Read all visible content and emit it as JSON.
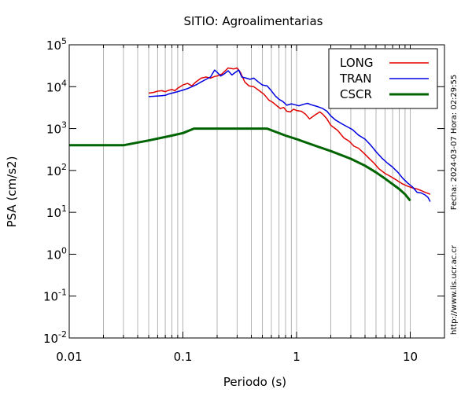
{
  "chart_data": {
    "type": "line",
    "title": "SITIO: Agroalimentarias",
    "xlabel": "Periodo (s)",
    "ylabel": "PSA (cm/s2)",
    "xscale": "log",
    "yscale": "log",
    "xlim": [
      0.01,
      20
    ],
    "ylim": [
      0.01,
      100000
    ],
    "grid": "x-minor-vertical",
    "legend_position": "top-right",
    "x_ticks": [
      {
        "value": 0.01,
        "label": "0.01"
      },
      {
        "value": 0.1,
        "label": "0.1"
      },
      {
        "value": 1,
        "label": "1"
      },
      {
        "value": 10,
        "label": "10"
      }
    ],
    "y_ticks": [
      {
        "value": 0.01,
        "base": "10",
        "exp": "-2"
      },
      {
        "value": 0.1,
        "base": "10",
        "exp": "-1"
      },
      {
        "value": 1,
        "base": "10",
        "exp": "0"
      },
      {
        "value": 10,
        "base": "10",
        "exp": "1"
      },
      {
        "value": 100,
        "base": "10",
        "exp": "2"
      },
      {
        "value": 1000,
        "base": "10",
        "exp": "3"
      },
      {
        "value": 10000,
        "base": "10",
        "exp": "4"
      },
      {
        "value": 100000,
        "base": "10",
        "exp": "5"
      }
    ],
    "series": [
      {
        "name": "LONG",
        "color": "#e00000",
        "width": 1.5,
        "points": [
          [
            0.05,
            7000
          ],
          [
            0.055,
            7300
          ],
          [
            0.06,
            7800
          ],
          [
            0.065,
            8000
          ],
          [
            0.07,
            7600
          ],
          [
            0.075,
            8200
          ],
          [
            0.08,
            8600
          ],
          [
            0.085,
            8000
          ],
          [
            0.09,
            9200
          ],
          [
            0.1,
            11000
          ],
          [
            0.11,
            12000
          ],
          [
            0.12,
            10500
          ],
          [
            0.13,
            13000
          ],
          [
            0.145,
            16000
          ],
          [
            0.16,
            17000
          ],
          [
            0.175,
            16000
          ],
          [
            0.19,
            17500
          ],
          [
            0.2,
            18000
          ],
          [
            0.22,
            20000
          ],
          [
            0.25,
            28000
          ],
          [
            0.28,
            26500
          ],
          [
            0.3,
            28000
          ],
          [
            0.32,
            22000
          ],
          [
            0.35,
            13000
          ],
          [
            0.38,
            10500
          ],
          [
            0.42,
            10000
          ],
          [
            0.47,
            8000
          ],
          [
            0.52,
            6500
          ],
          [
            0.57,
            4800
          ],
          [
            0.62,
            4200
          ],
          [
            0.67,
            3500
          ],
          [
            0.72,
            3000
          ],
          [
            0.77,
            3200
          ],
          [
            0.82,
            2600
          ],
          [
            0.88,
            2500
          ],
          [
            0.94,
            2900
          ],
          [
            1.0,
            2700
          ],
          [
            1.1,
            2600
          ],
          [
            1.2,
            2200
          ],
          [
            1.3,
            1700
          ],
          [
            1.45,
            2100
          ],
          [
            1.6,
            2500
          ],
          [
            1.7,
            2200
          ],
          [
            1.85,
            1700
          ],
          [
            2.0,
            1200
          ],
          [
            2.3,
            900
          ],
          [
            2.6,
            600
          ],
          [
            2.9,
            500
          ],
          [
            3.2,
            380
          ],
          [
            3.5,
            340
          ],
          [
            3.9,
            260
          ],
          [
            4.3,
            200
          ],
          [
            4.8,
            150
          ],
          [
            5.3,
            110
          ],
          [
            6.0,
            85
          ],
          [
            6.7,
            72
          ],
          [
            7.5,
            60
          ],
          [
            8.5,
            48
          ],
          [
            9.5,
            42
          ],
          [
            10.5,
            38
          ],
          [
            11.5,
            36
          ],
          [
            12.5,
            33
          ],
          [
            13.5,
            30
          ],
          [
            14.5,
            28
          ],
          [
            15,
            27
          ]
        ]
      },
      {
        "name": "TRAN",
        "color": "#0000e0",
        "width": 1.5,
        "points": [
          [
            0.05,
            5800
          ],
          [
            0.055,
            5900
          ],
          [
            0.06,
            6000
          ],
          [
            0.065,
            6100
          ],
          [
            0.07,
            6200
          ],
          [
            0.075,
            6700
          ],
          [
            0.08,
            7000
          ],
          [
            0.09,
            7600
          ],
          [
            0.1,
            8300
          ],
          [
            0.11,
            9000
          ],
          [
            0.12,
            10000
          ],
          [
            0.13,
            11000
          ],
          [
            0.145,
            13000
          ],
          [
            0.16,
            15000
          ],
          [
            0.175,
            17000
          ],
          [
            0.19,
            25000
          ],
          [
            0.2,
            22000
          ],
          [
            0.215,
            18000
          ],
          [
            0.23,
            20000
          ],
          [
            0.25,
            24000
          ],
          [
            0.27,
            19000
          ],
          [
            0.29,
            22000
          ],
          [
            0.31,
            25000
          ],
          [
            0.33,
            17000
          ],
          [
            0.36,
            16000
          ],
          [
            0.39,
            15000
          ],
          [
            0.42,
            16000
          ],
          [
            0.46,
            13000
          ],
          [
            0.5,
            11000
          ],
          [
            0.55,
            10500
          ],
          [
            0.6,
            8000
          ],
          [
            0.65,
            6000
          ],
          [
            0.7,
            5000
          ],
          [
            0.76,
            4400
          ],
          [
            0.82,
            3600
          ],
          [
            0.9,
            3900
          ],
          [
            0.97,
            3700
          ],
          [
            1.05,
            3500
          ],
          [
            1.15,
            3800
          ],
          [
            1.25,
            4000
          ],
          [
            1.35,
            3700
          ],
          [
            1.45,
            3500
          ],
          [
            1.55,
            3300
          ],
          [
            1.7,
            3000
          ],
          [
            1.85,
            2600
          ],
          [
            2.0,
            2000
          ],
          [
            2.2,
            1600
          ],
          [
            2.5,
            1300
          ],
          [
            2.8,
            1100
          ],
          [
            3.1,
            950
          ],
          [
            3.5,
            700
          ],
          [
            4.0,
            560
          ],
          [
            4.5,
            400
          ],
          [
            5.0,
            280
          ],
          [
            5.6,
            200
          ],
          [
            6.3,
            150
          ],
          [
            7.0,
            120
          ],
          [
            7.8,
            90
          ],
          [
            8.6,
            65
          ],
          [
            9.5,
            50
          ],
          [
            10.5,
            40
          ],
          [
            11.5,
            30
          ],
          [
            12.5,
            29
          ],
          [
            13.5,
            26
          ],
          [
            14.3,
            23
          ],
          [
            15,
            18
          ]
        ]
      },
      {
        "name": "CSCR",
        "color": "#006400",
        "width": 3,
        "points": [
          [
            0.01,
            400
          ],
          [
            0.03,
            400
          ],
          [
            0.05,
            520
          ],
          [
            0.08,
            680
          ],
          [
            0.1,
            780
          ],
          [
            0.125,
            1000
          ],
          [
            0.55,
            1000
          ],
          [
            0.8,
            680
          ],
          [
            1.0,
            560
          ],
          [
            1.5,
            380
          ],
          [
            2.0,
            290
          ],
          [
            3.0,
            190
          ],
          [
            4.0,
            130
          ],
          [
            5.0,
            90
          ],
          [
            6.0,
            64
          ],
          [
            7.0,
            47
          ],
          [
            8.0,
            36
          ],
          [
            9.0,
            27
          ],
          [
            10.0,
            19
          ]
        ]
      }
    ]
  },
  "side_text": {
    "timestamp": "Fecha: 2024-03-07 Hora: 02:29:55",
    "url": "http://www.lis.ucr.ac.cr"
  }
}
